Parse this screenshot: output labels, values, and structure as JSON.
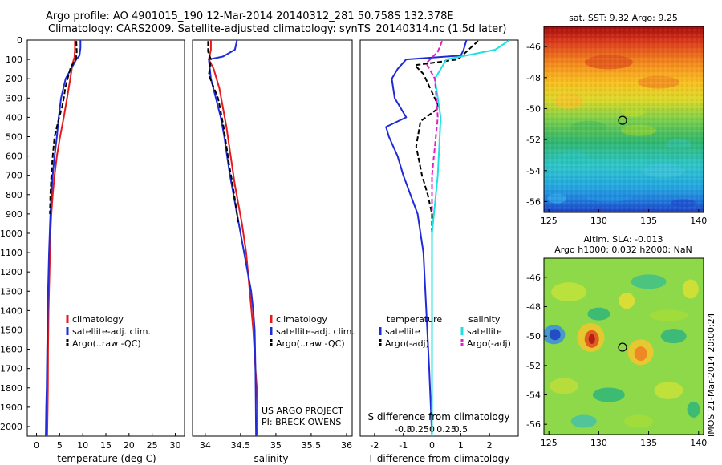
{
  "title_line1": "Argo profile: AO 4901015_190 12-Mar-2014 20140312_281 50.758S 132.378E",
  "title_line2": "Climatology: CARS2009. Satellite-adjusted climatology: synTS_20140314.nc (1.5d later)",
  "colors": {
    "climatology": "#e41a1c",
    "satellite": "#1f2bd6",
    "argo": "#000000",
    "sal_satellite": "#22e0e0",
    "sal_argo": "#e020c8"
  },
  "chart_data": [
    {
      "type": "line",
      "xlabel": "temperature (deg C)",
      "xticks": [
        "0",
        "5",
        "10",
        "15",
        "20",
        "25",
        "30"
      ],
      "xlim": [
        -2,
        32
      ],
      "ylim": [
        0,
        2050
      ],
      "y_reversed": true,
      "yticks": [
        "0",
        "100",
        "200",
        "300",
        "400",
        "500",
        "600",
        "700",
        "800",
        "900",
        "1000",
        "1100",
        "1200",
        "1300",
        "1400",
        "1500",
        "1600",
        "1700",
        "1800",
        "1900",
        "2000"
      ],
      "legend": [
        "climatology",
        "satellite-adj. clim.",
        "Argo(..raw -QC)"
      ],
      "series": [
        {
          "name": "climatology",
          "color": "climatology",
          "dash": "solid",
          "x": [
            8.3,
            8.3,
            8.2,
            7.8,
            7.3,
            6.6,
            5.9,
            5.1,
            4.4,
            3.9,
            3.5,
            3.2,
            3.0,
            2.8,
            2.6,
            2.5,
            2.45,
            2.4,
            2.3
          ],
          "y": [
            0,
            50,
            90,
            120,
            200,
            300,
            400,
            500,
            600,
            700,
            800,
            900,
            1000,
            1200,
            1400,
            1600,
            1800,
            1900,
            2050
          ]
        },
        {
          "name": "satellite-adj. clim.",
          "color": "satellite",
          "dash": "solid",
          "x": [
            9.5,
            9.5,
            9.3,
            8.6,
            6.3,
            5.3,
            4.8,
            4.4,
            3.9,
            3.5,
            3.2,
            3.0,
            2.7,
            2.5,
            2.3,
            2.2,
            2.1,
            2.0
          ],
          "y": [
            0,
            40,
            80,
            100,
            200,
            300,
            400,
            500,
            600,
            700,
            800,
            900,
            1100,
            1300,
            1600,
            1800,
            1900,
            2050
          ]
        },
        {
          "name": "Argo(..raw -QC)",
          "color": "argo",
          "dash": "dashed",
          "x": [
            8.6,
            8.7,
            8.5,
            7.4,
            6.7,
            6.2,
            5.9,
            5.5,
            4.9,
            4.4,
            3.9,
            3.5,
            3.2,
            3.0,
            2.9
          ],
          "y": [
            5,
            60,
            100,
            140,
            200,
            250,
            300,
            350,
            400,
            450,
            500,
            600,
            700,
            800,
            900
          ]
        }
      ]
    },
    {
      "type": "line",
      "xlabel": "salinity",
      "xticks": [
        "34",
        "34.5",
        "35",
        "35.5",
        "36"
      ],
      "xlim": [
        33.82,
        36.08
      ],
      "ylim": [
        0,
        2050
      ],
      "y_reversed": true,
      "legend": [
        "climatology",
        "satellite-adj. clim.",
        "Argo(..raw -QC)"
      ],
      "annotations": [
        "US ARGO PROJECT",
        "PI: BRECK OWENS"
      ],
      "series": [
        {
          "name": "climatology",
          "color": "climatology",
          "dash": "solid",
          "x": [
            34.08,
            34.08,
            34.05,
            34.12,
            34.2,
            34.25,
            34.3,
            34.34,
            34.38,
            34.42,
            34.47,
            34.52,
            34.58,
            34.63,
            34.68,
            34.71,
            34.73,
            34.74,
            34.74
          ],
          "y": [
            0,
            50,
            100,
            150,
            250,
            350,
            450,
            550,
            650,
            750,
            850,
            950,
            1100,
            1300,
            1500,
            1700,
            1800,
            1900,
            2050
          ]
        },
        {
          "name": "satellite-adj. clim.",
          "color": "satellite",
          "dash": "solid",
          "x": [
            34.45,
            34.42,
            34.25,
            34.05,
            34.08,
            34.15,
            34.22,
            34.27,
            34.31,
            34.35,
            34.4,
            34.45,
            34.5,
            34.55,
            34.6,
            34.65,
            34.68,
            34.7,
            34.71,
            34.72
          ],
          "y": [
            0,
            50,
            85,
            100,
            200,
            300,
            400,
            500,
            600,
            700,
            800,
            900,
            1000,
            1100,
            1200,
            1300,
            1400,
            1500,
            1700,
            2050
          ]
        },
        {
          "name": "Argo(..raw -QC)",
          "color": "argo",
          "dash": "dashed",
          "x": [
            34.04,
            34.04,
            34.08,
            34.05,
            34.18,
            34.21,
            34.26,
            34.3,
            34.34,
            34.39,
            34.43,
            34.47
          ],
          "y": [
            5,
            60,
            100,
            180,
            300,
            350,
            450,
            550,
            650,
            750,
            850,
            950
          ]
        }
      ]
    },
    {
      "type": "line",
      "xlabel": "T difference from climatology",
      "xlabel_top": "S difference from climatology",
      "xticks": [
        "-2",
        "-1",
        "0",
        "1",
        "2"
      ],
      "xticks_top": [
        "-0.5",
        "-0.25",
        "0",
        "0.25",
        "0.5"
      ],
      "xlim": [
        -2.5,
        3
      ],
      "ylim": [
        0,
        2050
      ],
      "y_reversed": true,
      "legend_temperature": {
        "heading": "temperature",
        "items": [
          "satellite",
          "Argo(-adj)"
        ]
      },
      "legend_salinity": {
        "heading": "salinity",
        "items": [
          "satellite",
          "Argo(-adj)"
        ]
      },
      "series": [
        {
          "name": "temperature satellite",
          "color": "satellite",
          "dash": "solid",
          "x": [
            1.2,
            1.1,
            1.0,
            -0.9,
            -1.2,
            -1.4,
            -1.3,
            -0.9,
            -1.6,
            -1.5,
            -1.2,
            -1.0,
            -0.5,
            -0.3,
            -0.2,
            -0.1,
            0.0
          ],
          "y": [
            0,
            50,
            80,
            100,
            150,
            200,
            300,
            400,
            450,
            500,
            600,
            700,
            900,
            1100,
            1400,
            1700,
            2050
          ]
        },
        {
          "name": "temperature Argo(-adj)",
          "color": "argo",
          "dash": "dashed",
          "x": [
            1.6,
            0.9,
            -0.6,
            -0.3,
            0.25,
            -0.4,
            -0.55,
            -0.35,
            -0.15,
            0.0,
            0.0
          ],
          "y": [
            5,
            100,
            130,
            175,
            350,
            420,
            550,
            700,
            800,
            900,
            1000
          ]
        },
        {
          "name": "salinity satellite",
          "color": "sal_satellite",
          "dash": "solid",
          "x": [
            2.7,
            2.2,
            0.5,
            0.1,
            0.3,
            0.2,
            0.0,
            0.0,
            0.0
          ],
          "y": [
            0,
            50,
            100,
            200,
            400,
            700,
            1000,
            1500,
            2050
          ]
        },
        {
          "name": "salinity Argo(-adj)",
          "color": "sal_argo",
          "dash": "dashed",
          "x": [
            0.35,
            0.2,
            -0.2,
            0.1,
            0.2,
            0.0,
            0.0
          ],
          "y": [
            5,
            60,
            120,
            200,
            400,
            700,
            900
          ]
        }
      ]
    },
    {
      "type": "heatmap",
      "title": "sat. SST: 9.32 Argo: 9.25",
      "xticks": [
        "125",
        "130",
        "135",
        "140"
      ],
      "yticks": [
        "-46",
        "-48",
        "-50",
        "-52",
        "-54",
        "-56"
      ],
      "xlim": [
        124.5,
        140.5
      ],
      "ylim": [
        -56.7,
        -44.7
      ],
      "marker": {
        "lon": 132.378,
        "lat": -50.758
      }
    },
    {
      "type": "heatmap",
      "title": "Altim. SLA: -0.013",
      "subtitle": "Argo h1000: 0.032 h2000: NaN",
      "xticks": [
        "125",
        "130",
        "135",
        "140"
      ],
      "yticks": [
        "-46",
        "-48",
        "-50",
        "-52",
        "-54",
        "-56"
      ],
      "xlim": [
        124.5,
        140.5
      ],
      "ylim": [
        -56.7,
        -44.7
      ],
      "marker": {
        "lon": 132.378,
        "lat": -50.758
      }
    }
  ],
  "side_label": "IMOS 21-Mar-2014 20:00:24"
}
